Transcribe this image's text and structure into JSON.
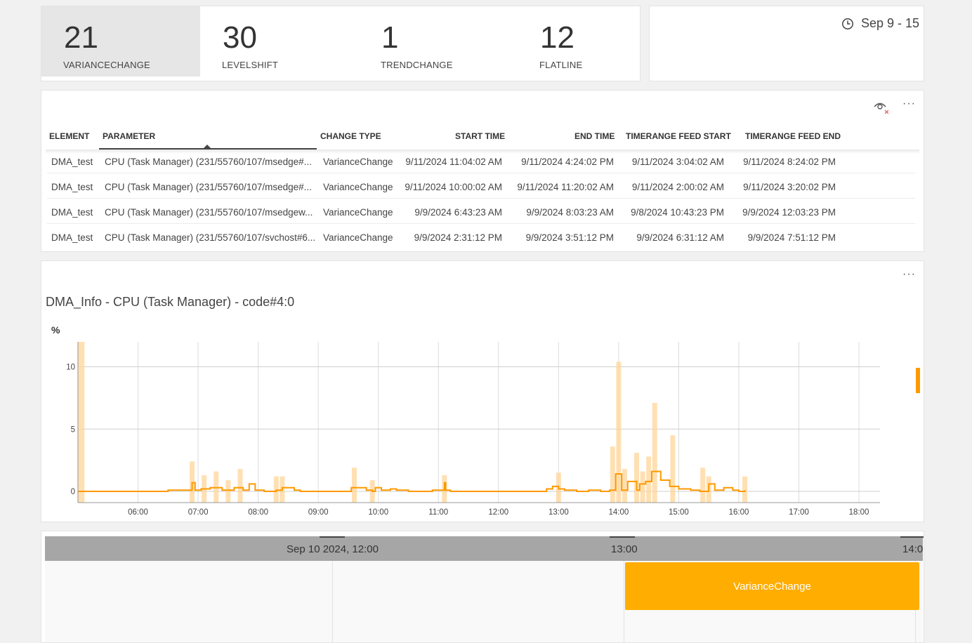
{
  "kpis": [
    {
      "value": "21",
      "label": "VARIANCECHANGE",
      "active": true
    },
    {
      "value": "30",
      "label": "LEVELSHIFT",
      "active": false
    },
    {
      "value": "1",
      "label": "TRENDCHANGE",
      "active": false
    },
    {
      "value": "12",
      "label": "FLATLINE",
      "active": false
    }
  ],
  "date_range": {
    "icon": "clock-icon",
    "label": "Sep 9 - 15"
  },
  "table": {
    "columns": [
      "ELEMENT",
      "PARAMETER",
      "CHANGE TYPE",
      "START TIME",
      "END TIME",
      "TIMERANGE FEED START",
      "TIMERANGE FEED END"
    ],
    "sorted_column": "PARAMETER",
    "rows": [
      [
        "DMA_test",
        "CPU (Task Manager) (231/55760/107/msedge#...",
        "VarianceChange",
        "9/11/2024 11:04:02 AM",
        "9/11/2024 4:24:02 PM",
        "9/11/2024 3:04:02 AM",
        "9/11/2024 8:24:02 PM"
      ],
      [
        "DMA_test",
        "CPU (Task Manager) (231/55760/107/msedge#...",
        "VarianceChange",
        "9/11/2024 10:00:02 AM",
        "9/11/2024 11:20:02 AM",
        "9/11/2024 2:00:02 AM",
        "9/11/2024 3:20:02 PM"
      ],
      [
        "DMA_test",
        "CPU (Task Manager) (231/55760/107/msedgew...",
        "VarianceChange",
        "9/9/2024 6:43:23 AM",
        "9/9/2024 8:03:23 AM",
        "9/8/2024 10:43:23 PM",
        "9/9/2024 12:03:23 PM"
      ],
      [
        "DMA_test",
        "CPU (Task Manager) (231/55760/107/svchost#6...",
        "VarianceChange",
        "9/9/2024 2:31:12 PM",
        "9/9/2024 3:51:12 PM",
        "9/9/2024 6:31:12 AM",
        "9/9/2024 7:51:12 PM"
      ]
    ]
  },
  "chart": {
    "title": "DMA_Info - CPU (Task Manager) - code#4:0"
  },
  "chart_data": {
    "type": "line",
    "title": "DMA_Info - CPU (Task Manager) - code#4:0",
    "ylabel": "%",
    "xlabel": "",
    "ylim": [
      -0.9,
      12
    ],
    "xlim": [
      5.0,
      18.35
    ],
    "x_ticks": [
      "06:00",
      "07:00",
      "08:00",
      "09:00",
      "10:00",
      "11:00",
      "12:00",
      "13:00",
      "14:00",
      "15:00",
      "16:00",
      "17:00",
      "18:00"
    ],
    "x_tick_values": [
      6,
      7,
      8,
      9,
      10,
      11,
      12,
      13,
      14,
      15,
      16,
      17,
      18
    ],
    "y_ticks": [
      0,
      5,
      10
    ],
    "grid": true,
    "colors": {
      "line": "#ff9900",
      "band": "#ffd699"
    },
    "series": [
      {
        "values_x": [
          5.0,
          5.5,
          6.0,
          6.5,
          6.8,
          6.9,
          6.95,
          7.05,
          7.2,
          7.4,
          7.6,
          7.75,
          7.85,
          7.95,
          8.1,
          8.3,
          8.4,
          8.6,
          8.7,
          9.15,
          9.3,
          9.45,
          9.55,
          9.8,
          9.9,
          9.95,
          10.05,
          10.2,
          10.3,
          10.5,
          10.65,
          10.9,
          11.1,
          11.12,
          11.2,
          11.5,
          11.8,
          12.5,
          12.8,
          12.9,
          13.0,
          13.1,
          13.3,
          13.5,
          13.7,
          13.85,
          13.95,
          14.05,
          14.15,
          14.3,
          14.35,
          14.45,
          14.55,
          14.7,
          14.85,
          15.0,
          15.2,
          15.35,
          15.4,
          15.5,
          15.6,
          15.75,
          15.9,
          16.0,
          16.1
        ],
        "values_y": [
          0,
          0,
          0,
          0.1,
          0.1,
          0.7,
          0.1,
          0.2,
          0.3,
          0.1,
          0.3,
          0.1,
          0.6,
          0.1,
          0.0,
          0.1,
          0.3,
          0.1,
          0.0,
          0.0,
          0.0,
          0.0,
          0.3,
          0.1,
          0.0,
          0.3,
          0.1,
          0.2,
          0.1,
          0.0,
          0.0,
          0.1,
          0.7,
          0.1,
          0.0,
          0.0,
          0.0,
          0.0,
          0.2,
          0.4,
          0.2,
          0.1,
          0.0,
          0.1,
          0.0,
          0.1,
          1.4,
          0.1,
          0.8,
          0.1,
          0.6,
          0.8,
          1.6,
          0.9,
          0.4,
          0.2,
          0.1,
          0.0,
          0.0,
          0.6,
          0.1,
          0.3,
          0.1,
          0.0,
          0.1
        ]
      },
      {
        "name": "",
        "kind": "band",
        "values_x": [
          5.05,
          6.9,
          7.1,
          7.3,
          7.5,
          7.7,
          8.3,
          8.4,
          9.6,
          9.9,
          11.1,
          13.0,
          13.9,
          14.0,
          14.1,
          14.3,
          14.4,
          14.5,
          14.6,
          14.9,
          15.4,
          15.5,
          16.1
        ],
        "values_y": [
          12,
          2.4,
          1.3,
          1.6,
          0.9,
          1.8,
          1.2,
          1.2,
          1.9,
          0.9,
          1.3,
          1.5,
          3.6,
          10.4,
          1.8,
          3.1,
          1.6,
          2.8,
          7.1,
          4.5,
          1.9,
          1.2,
          1.2
        ]
      }
    ],
    "legend": "none",
    "right_indicator": true
  },
  "timeline": {
    "labels": [
      "Sep 10 2024, 12:00",
      "13:00",
      "14:0"
    ],
    "event": {
      "label": "VarianceChange",
      "color": "#ffad00"
    }
  },
  "icons": {
    "visibility": "eye-off-icon",
    "more": "more-options-icon"
  }
}
